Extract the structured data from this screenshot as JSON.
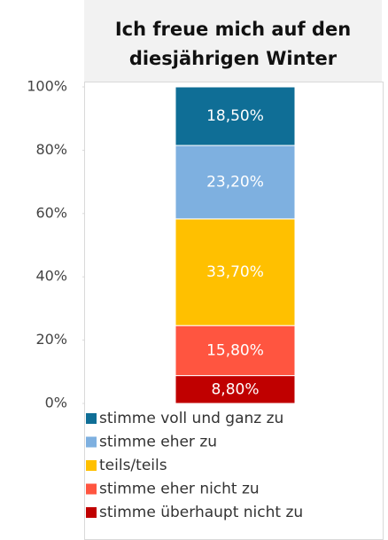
{
  "chart_data": {
    "type": "stacked_bar",
    "title": [
      "Ich freue mich auf den",
      "diesjährigen Winter"
    ],
    "series": [
      {
        "name": "stimme voll und ganz zu",
        "color": "#0f6e96",
        "values": [
          18.5
        ],
        "value_labels": [
          "18,50%"
        ]
      },
      {
        "name": "stimme eher zu",
        "color": "#7eb0e0",
        "values": [
          23.2
        ],
        "value_labels": [
          "23,20%"
        ]
      },
      {
        "name": "teils/teils",
        "color": "#ffc000",
        "values": [
          33.7
        ],
        "value_labels": [
          "33,70%"
        ]
      },
      {
        "name": "stimme eher nicht zu",
        "color": "#ff5540",
        "values": [
          15.8
        ],
        "value_labels": [
          "15,80%"
        ]
      },
      {
        "name": "stimme überhaupt nicht zu",
        "color": "#c00000",
        "values": [
          8.8
        ],
        "value_labels": [
          "8,80%"
        ]
      }
    ],
    "ylim": [
      0,
      100
    ],
    "yticks": [
      {
        "value": 0,
        "label": "0%"
      },
      {
        "value": 20,
        "label": "20%"
      },
      {
        "value": 40,
        "label": "40%"
      },
      {
        "value": 60,
        "label": "60%"
      },
      {
        "value": 80,
        "label": "80%"
      },
      {
        "value": 100,
        "label": "100%"
      }
    ]
  }
}
